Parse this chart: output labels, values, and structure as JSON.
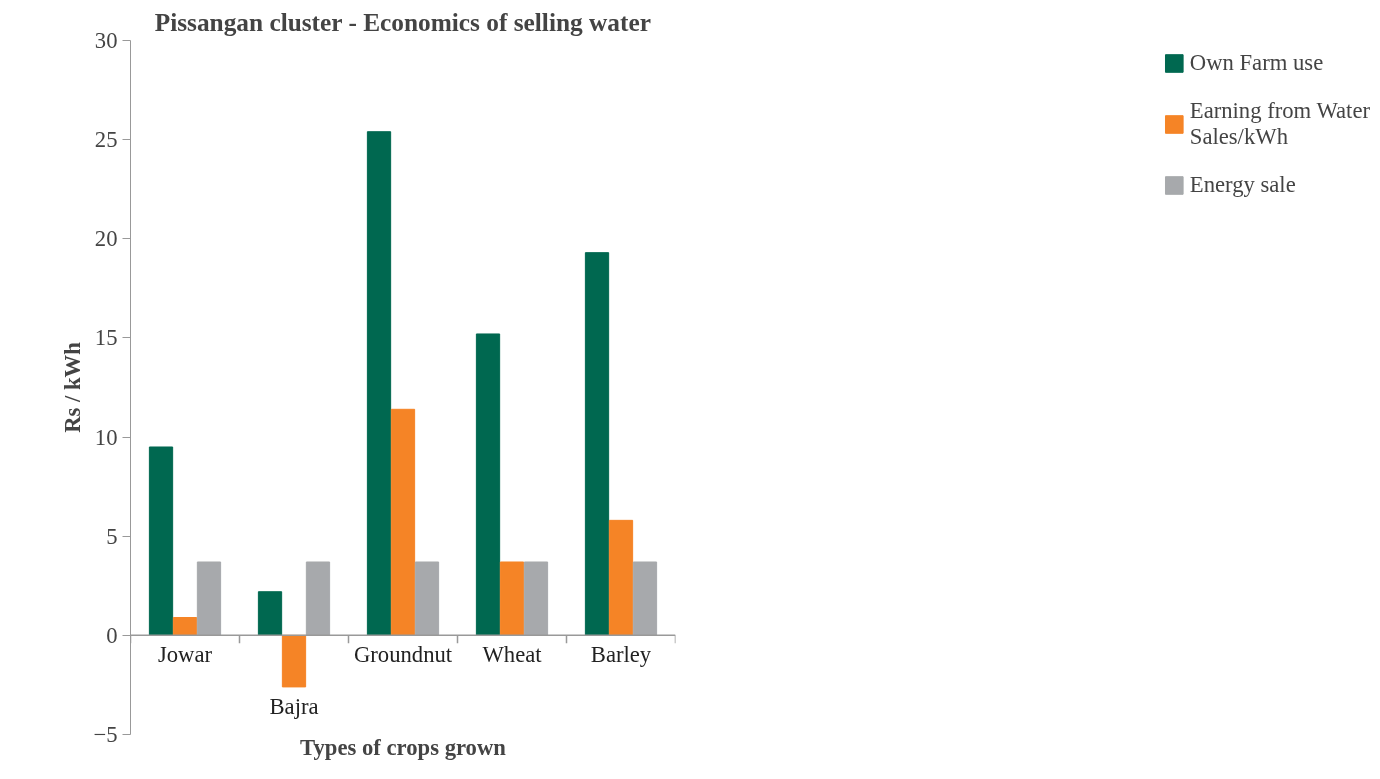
{
  "chart_data": {
    "type": "bar",
    "title": "Pissangan cluster - Economics of selling water",
    "xlabel": "Types of crops grown",
    "ylabel": "Rs / kWh",
    "categories": [
      "Jowar",
      "Bajra",
      "Groundnut",
      "Wheat",
      "Barley"
    ],
    "series": [
      {
        "name": "Own Farm use",
        "color": "#006850",
        "values": [
          9.5,
          2.2,
          25.4,
          15.2,
          19.3
        ]
      },
      {
        "name": "Earning from Water Sales/kWh",
        "color": "#f58426",
        "values": [
          0.9,
          -2.6,
          11.4,
          3.7,
          5.8
        ]
      },
      {
        "name": "Energy sale",
        "color": "#a7a9ac",
        "values": [
          3.7,
          3.7,
          3.7,
          3.7,
          3.7
        ]
      }
    ],
    "ylim": [
      -5,
      30
    ],
    "yticks": [
      -5,
      0,
      5,
      10,
      15,
      20,
      25,
      30
    ],
    "grid": false,
    "legend": "right"
  }
}
